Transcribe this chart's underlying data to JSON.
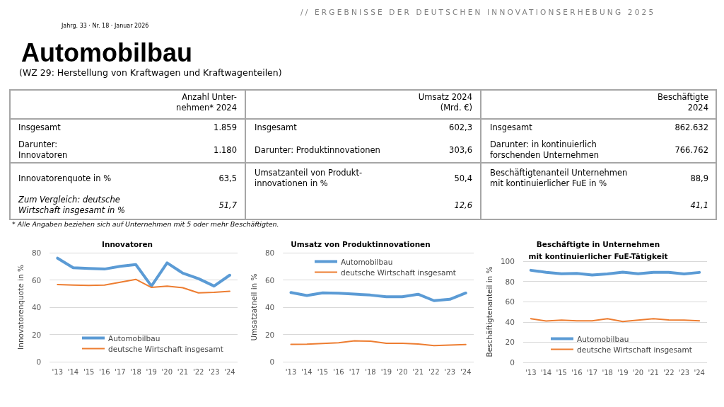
{
  "chart_data": [
    {
      "type": "other",
      "title": "Automobilbau",
      "subtitle": "(WZ 29: Herstellung von Kraftwagen und Kraftwagenteilen)",
      "annotations": [
        "// ERGEBNISSE DER DEUTSCHEN INNOVATIONSERHEBUNG 2025",
        "Jahrg. 33 · Nr. 18 · Januar 2026",
        "Anzahl Unter-\nnehmen* 2024",
        "Umsatz 2024\n(Mrd. €)",
        "Beschäftigte\n2024",
        "Insgesamt",
        "1.859",
        "Insgesamt",
        "602,3",
        "Insgesamt",
        "862.632",
        "Darunter:\nInnovatoren",
        "1.180",
        "Darunter: Produktinnovationen",
        "303,6",
        "Darunter: in kontinuierlich\nforschenden Unternehmen",
        "766.762",
        "Innovatorenquote in %",
        "63,5",
        "Umsatzanteil von Produkt-\ninnovationen in %",
        "50,4",
        "Beschäftigtenanteil Unternehmen\nmit kontinuierlicher FuE in %",
        "88,9",
        "Zum Vergleich: deutsche\nWirtschaft insgesamt in %",
        "51,7",
        "12,6",
        "41,1",
        "* Alle Angaben beziehen sich auf Unternehmen mit 5 oder mehr Beschäftigten."
      ]
    },
    {
      "type": "line",
      "title": "Innovatoren",
      "ylabel": "Innovatorenquote in %",
      "categories": [
        "'13",
        "'14",
        "'15",
        "'16",
        "'17",
        "'18",
        "'19",
        "'20",
        "'21",
        "'22",
        "'23",
        "'24"
      ],
      "series": [
        {
          "name": "Automobilbau",
          "color": "#5b9bd5",
          "values": [
            76,
            69,
            68.4,
            68,
            70,
            71.3,
            55.5,
            72.5,
            65,
            61,
            55.5,
            63.5
          ]
        },
        {
          "name": "deutsche Wirtschaft insgesamt",
          "color": "#ed7d31",
          "values": [
            56.6,
            56.2,
            56,
            56.2,
            58.3,
            60.4,
            54.5,
            55.5,
            54.3,
            50.5,
            50.9,
            51.7
          ]
        }
      ],
      "ylim": [
        0,
        80
      ],
      "yticks": [
        0,
        20,
        40,
        60,
        80
      ],
      "grid": "y",
      "legend": "bottom",
      "marker": "none"
    },
    {
      "type": "line",
      "title": "Umsatz von Produktinnovationen",
      "ylabel": "Umsatzatneil in %",
      "categories": [
        "'13",
        "'14",
        "'15",
        "'16",
        "'17",
        "'18",
        "'19",
        "'20",
        "'21",
        "'22",
        "'23",
        "'24"
      ],
      "series": [
        {
          "name": "Automobilbau",
          "color": "#5b9bd5",
          "values": [
            50.8,
            48.6,
            50.5,
            50.3,
            49.6,
            48.9,
            47.7,
            47.7,
            49.5,
            44.8,
            45.8,
            50.4
          ]
        },
        {
          "name": "deutsche Wirtschaft insgesamt",
          "color": "#ed7d31",
          "values": [
            12.7,
            12.8,
            13.4,
            13.9,
            15.3,
            15.1,
            13.5,
            13.5,
            13,
            11.8,
            12.2,
            12.6
          ]
        }
      ],
      "ylim": [
        0,
        80
      ],
      "yticks": [
        0,
        20,
        40,
        60,
        80
      ],
      "grid": "y",
      "legend": "top",
      "marker": "none"
    },
    {
      "type": "line",
      "title": "Beschäftigte in Unternehmen\nmit kontinuierlicher FuE-Tätigkeit",
      "ylabel": "Beschäftigtenanteil in %",
      "categories": [
        "'13",
        "'14",
        "'15",
        "'16",
        "'17",
        "'18",
        "'19",
        "'20",
        "'21",
        "'22",
        "'23",
        "'24"
      ],
      "series": [
        {
          "name": "Automobilbau",
          "color": "#5b9bd5",
          "values": [
            91,
            89,
            87.6,
            88,
            86.4,
            87.4,
            89.2,
            87.6,
            89,
            89,
            87.4,
            88.9
          ]
        },
        {
          "name": "deutsche Wirtschaft insgesamt",
          "color": "#ed7d31",
          "values": [
            43.2,
            40.9,
            41.8,
            41.1,
            41.1,
            43.2,
            40.4,
            41.8,
            43.2,
            42,
            41.8,
            41.1
          ]
        }
      ],
      "ylim": [
        0,
        100
      ],
      "yticks": [
        0,
        20,
        40,
        60,
        80,
        100
      ],
      "grid": "y",
      "legend": "bottom",
      "marker": "none"
    }
  ]
}
